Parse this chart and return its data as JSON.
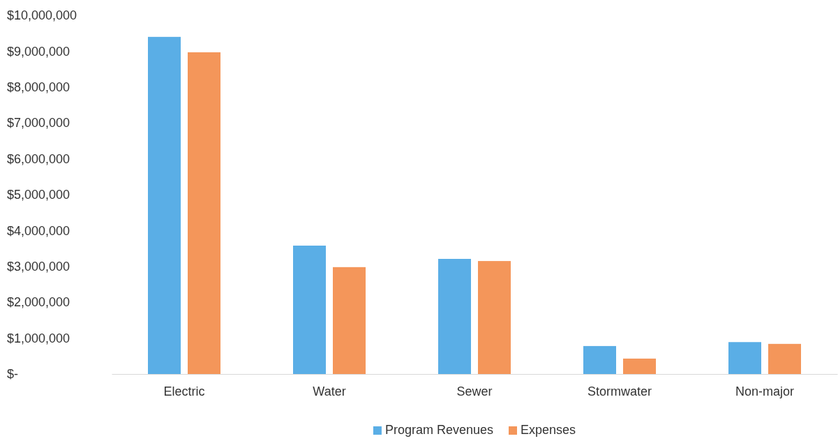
{
  "chart_data": {
    "type": "bar",
    "categories": [
      "Electric",
      "Water",
      "Sewer",
      "Stormwater",
      "Non-major"
    ],
    "series": [
      {
        "name": "Program Revenues",
        "color": "#5aaee6",
        "values": [
          9400000,
          3580000,
          3210000,
          780000,
          890000
        ]
      },
      {
        "name": "Expenses",
        "color": "#f4965a",
        "values": [
          8970000,
          2980000,
          3150000,
          430000,
          840000
        ]
      }
    ],
    "ylim": [
      0,
      10000000
    ],
    "yticks": [
      {
        "value": 0,
        "label": "$-"
      },
      {
        "value": 1000000,
        "label": "$1,000,000"
      },
      {
        "value": 2000000,
        "label": "$2,000,000"
      },
      {
        "value": 3000000,
        "label": "$3,000,000"
      },
      {
        "value": 4000000,
        "label": "$4,000,000"
      },
      {
        "value": 5000000,
        "label": "$5,000,000"
      },
      {
        "value": 6000000,
        "label": "$6,000,000"
      },
      {
        "value": 7000000,
        "label": "$7,000,000"
      },
      {
        "value": 8000000,
        "label": "$8,000,000"
      },
      {
        "value": 9000000,
        "label": "$9,000,000"
      },
      {
        "value": 10000000,
        "label": "$10,000,000"
      }
    ],
    "grid": false,
    "legend": "bottom"
  }
}
